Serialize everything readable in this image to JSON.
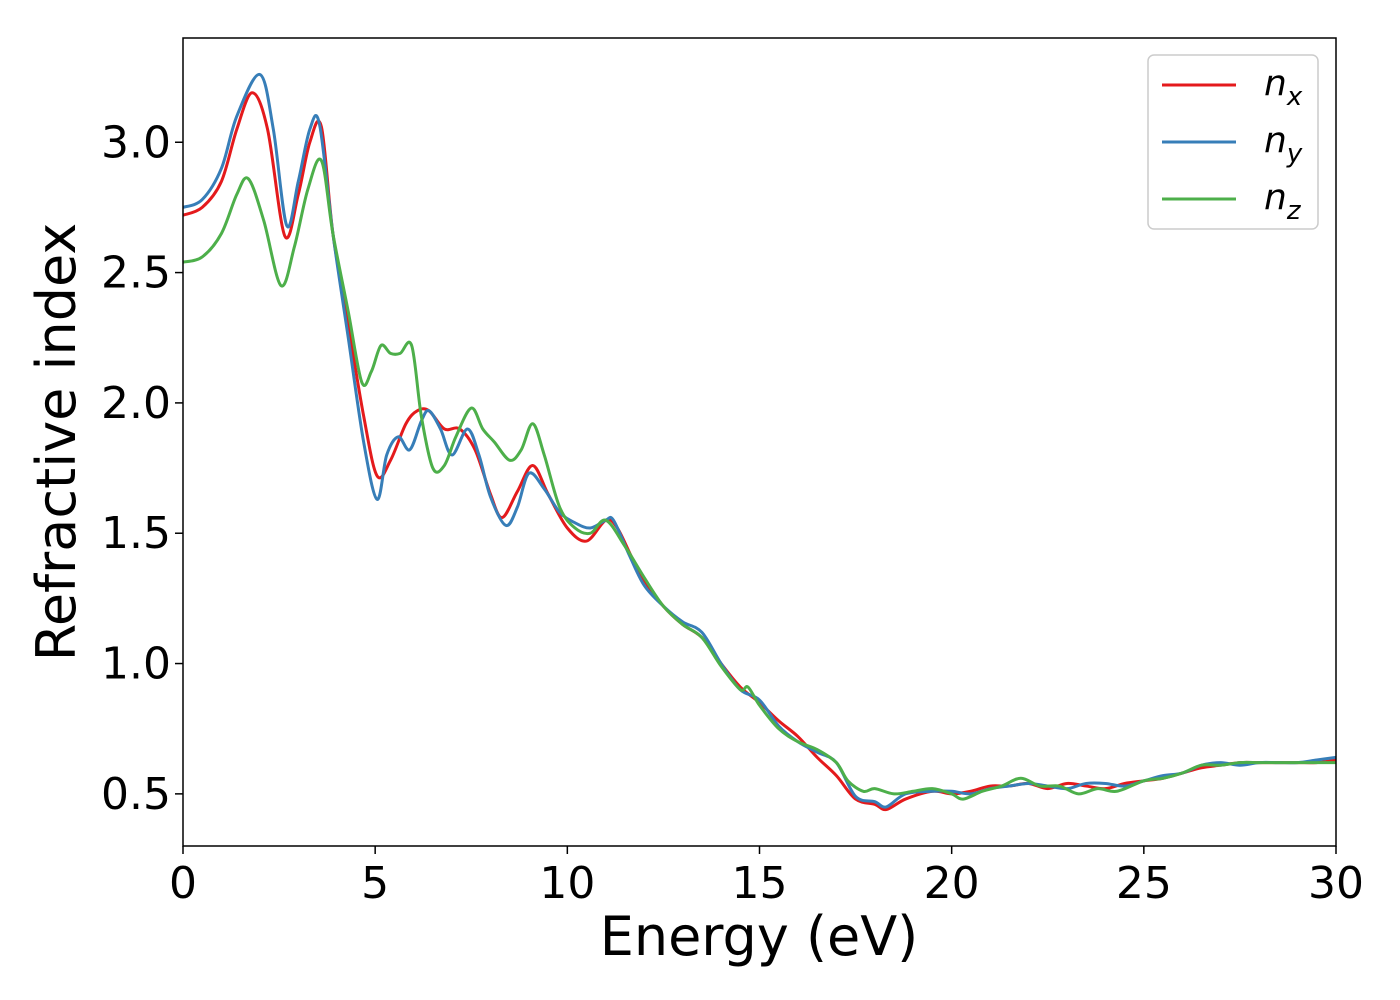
{
  "chart_data": {
    "type": "line",
    "title": "",
    "xlabel": "Energy (eV)",
    "ylabel": "Refractive index",
    "xlim": [
      0,
      30
    ],
    "ylim": [
      0.3,
      3.4
    ],
    "xticks": [
      0,
      5,
      10,
      15,
      20,
      25,
      30
    ],
    "xtick_labels": [
      "0",
      "5",
      "10",
      "15",
      "20",
      "25",
      "30"
    ],
    "yticks": [
      0.5,
      1.0,
      1.5,
      2.0,
      2.5,
      3.0
    ],
    "ytick_labels": [
      "0.5",
      "1.0",
      "1.5",
      "2.0",
      "2.5",
      "3.0"
    ],
    "grid": false,
    "legend_position": "top-right",
    "series": [
      {
        "name": "n_x",
        "label_base": "n",
        "label_sub": "x",
        "color": "#e41a1c",
        "x": [
          0,
          0.5,
          1.0,
          1.4,
          1.8,
          2.2,
          2.65,
          3.0,
          3.3,
          3.6,
          3.9,
          4.3,
          4.7,
          5.05,
          5.4,
          5.8,
          6.1,
          6.4,
          6.8,
          7.2,
          7.6,
          8.0,
          8.3,
          8.7,
          9.1,
          9.5,
          10.0,
          10.5,
          11.0,
          11.3,
          11.7,
          12.0,
          12.5,
          13.0,
          13.5,
          14.0,
          14.5,
          15.0,
          15.5,
          16.0,
          16.5,
          17.0,
          17.5,
          18.0,
          18.3,
          18.8,
          19.5,
          20.0,
          20.5,
          21.0,
          21.5,
          22.0,
          22.5,
          23.0,
          23.5,
          24.0,
          24.5,
          25.0,
          25.5,
          26.0,
          26.5,
          27.0,
          27.5,
          28.0,
          28.5,
          29.0,
          29.5,
          30.0
        ],
        "values": [
          2.72,
          2.75,
          2.85,
          3.05,
          3.19,
          3.05,
          2.64,
          2.8,
          3.0,
          3.06,
          2.65,
          2.3,
          1.95,
          1.72,
          1.78,
          1.92,
          1.97,
          1.97,
          1.9,
          1.9,
          1.82,
          1.65,
          1.56,
          1.66,
          1.76,
          1.65,
          1.52,
          1.47,
          1.55,
          1.52,
          1.4,
          1.32,
          1.22,
          1.15,
          1.1,
          1.0,
          0.91,
          0.85,
          0.78,
          0.72,
          0.64,
          0.57,
          0.48,
          0.46,
          0.44,
          0.48,
          0.51,
          0.5,
          0.51,
          0.53,
          0.53,
          0.54,
          0.52,
          0.54,
          0.53,
          0.52,
          0.54,
          0.55,
          0.56,
          0.58,
          0.6,
          0.61,
          0.62,
          0.62,
          0.62,
          0.62,
          0.62,
          0.63
        ]
      },
      {
        "name": "n_y",
        "label_base": "n",
        "label_sub": "y",
        "color": "#377eb8",
        "x": [
          0,
          0.5,
          1.0,
          1.4,
          2.0,
          2.35,
          2.7,
          3.0,
          3.3,
          3.55,
          3.9,
          4.3,
          4.7,
          5.05,
          5.3,
          5.6,
          5.9,
          6.2,
          6.4,
          6.7,
          7.0,
          7.4,
          7.7,
          8.0,
          8.4,
          8.7,
          9.0,
          9.4,
          9.8,
          10.2,
          10.6,
          11.0,
          11.2,
          11.6,
          12.0,
          12.5,
          13.0,
          13.5,
          14.0,
          14.5,
          15.0,
          15.5,
          16.0,
          16.5,
          17.0,
          17.5,
          18.0,
          18.3,
          18.8,
          19.5,
          20.0,
          20.5,
          21.0,
          21.5,
          22.0,
          22.5,
          23.0,
          23.5,
          24.0,
          24.5,
          25.0,
          25.5,
          26.0,
          26.5,
          27.0,
          27.5,
          28.0,
          28.5,
          29.0,
          29.5,
          30.0
        ],
        "values": [
          2.75,
          2.78,
          2.9,
          3.1,
          3.26,
          3.05,
          2.68,
          2.85,
          3.05,
          3.07,
          2.65,
          2.25,
          1.85,
          1.63,
          1.8,
          1.87,
          1.82,
          1.93,
          1.97,
          1.9,
          1.8,
          1.9,
          1.8,
          1.64,
          1.53,
          1.6,
          1.73,
          1.67,
          1.58,
          1.54,
          1.52,
          1.55,
          1.55,
          1.42,
          1.3,
          1.22,
          1.16,
          1.12,
          1.0,
          0.9,
          0.86,
          0.76,
          0.7,
          0.66,
          0.62,
          0.49,
          0.47,
          0.45,
          0.5,
          0.51,
          0.51,
          0.5,
          0.52,
          0.53,
          0.54,
          0.53,
          0.52,
          0.54,
          0.54,
          0.53,
          0.55,
          0.57,
          0.58,
          0.61,
          0.62,
          0.61,
          0.62,
          0.62,
          0.62,
          0.63,
          0.64
        ]
      },
      {
        "name": "n_z",
        "label_base": "n",
        "label_sub": "z",
        "color": "#4daf4a",
        "x": [
          0,
          0.5,
          1.0,
          1.4,
          1.7,
          2.1,
          2.55,
          2.9,
          3.25,
          3.6,
          3.9,
          4.3,
          4.65,
          4.9,
          5.15,
          5.4,
          5.65,
          5.95,
          6.2,
          6.5,
          6.8,
          7.1,
          7.5,
          7.8,
          8.1,
          8.5,
          8.8,
          9.1,
          9.4,
          9.8,
          10.2,
          10.6,
          11.0,
          11.5,
          12.0,
          12.5,
          13.0,
          13.5,
          14.0,
          14.5,
          14.7,
          15.0,
          15.5,
          16.0,
          16.5,
          17.0,
          17.3,
          17.7,
          18.0,
          18.5,
          19.0,
          19.5,
          20.0,
          20.3,
          20.8,
          21.3,
          21.8,
          22.3,
          22.8,
          23.3,
          23.8,
          24.3,
          25.0,
          25.5,
          26.0,
          26.5,
          27.0,
          27.5,
          28.0,
          28.5,
          29.0,
          29.5,
          30.0
        ],
        "values": [
          2.54,
          2.56,
          2.65,
          2.8,
          2.86,
          2.7,
          2.45,
          2.6,
          2.82,
          2.93,
          2.65,
          2.35,
          2.08,
          2.12,
          2.22,
          2.19,
          2.19,
          2.22,
          1.95,
          1.75,
          1.76,
          1.87,
          1.98,
          1.9,
          1.85,
          1.78,
          1.82,
          1.92,
          1.8,
          1.6,
          1.52,
          1.5,
          1.55,
          1.45,
          1.33,
          1.22,
          1.15,
          1.1,
          0.99,
          0.9,
          0.91,
          0.84,
          0.75,
          0.7,
          0.67,
          0.62,
          0.55,
          0.51,
          0.52,
          0.5,
          0.51,
          0.52,
          0.5,
          0.48,
          0.51,
          0.53,
          0.56,
          0.53,
          0.53,
          0.5,
          0.52,
          0.51,
          0.55,
          0.56,
          0.58,
          0.61,
          0.61,
          0.62,
          0.62,
          0.62,
          0.62,
          0.62,
          0.62
        ]
      }
    ]
  }
}
